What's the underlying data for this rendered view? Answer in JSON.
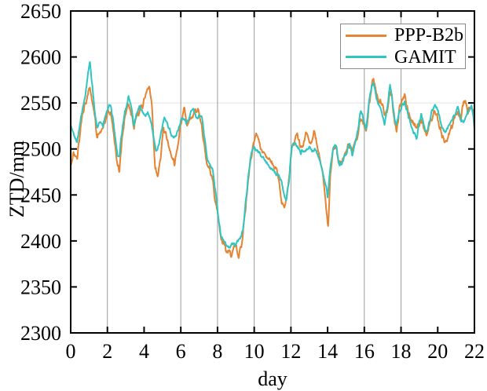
{
  "figure_title": "",
  "legend": {
    "items": [
      {
        "label": "PPP-B2b"
      },
      {
        "label": "GAMIT"
      }
    ]
  },
  "chart_data": {
    "type": "line",
    "title": "",
    "xlabel": "day",
    "ylabel": "ZTD/mm",
    "xlim": [
      0,
      22
    ],
    "ylim": [
      2300,
      2650
    ],
    "x_ticks": [
      0,
      2,
      4,
      6,
      8,
      10,
      12,
      14,
      16,
      18,
      20,
      22
    ],
    "y_ticks": [
      2300,
      2350,
      2400,
      2450,
      2500,
      2550,
      2600,
      2650
    ],
    "grid_vertical_days": [
      2,
      6,
      8,
      10,
      12,
      16,
      18
    ],
    "grid_horizontal_values": [
      2550
    ],
    "legend_position": "top-right",
    "colors": {
      "frame": "#000000",
      "grid_vertical": "#9a9a9a",
      "grid_horizontal": "#e2e2e2",
      "text": "#000000"
    },
    "series": [
      {
        "name": "PPP-B2b",
        "color": "#E58432",
        "anchors": [
          [
            0,
            2484
          ],
          [
            0.15,
            2494
          ],
          [
            0.35,
            2489
          ],
          [
            0.5,
            2516
          ],
          [
            0.65,
            2538
          ],
          [
            0.8,
            2549
          ],
          [
            0.95,
            2560
          ],
          [
            1.05,
            2567
          ],
          [
            1.15,
            2553
          ],
          [
            1.3,
            2536
          ],
          [
            1.45,
            2512
          ],
          [
            1.6,
            2521
          ],
          [
            1.75,
            2520
          ],
          [
            1.9,
            2532
          ],
          [
            2.05,
            2543
          ],
          [
            2.2,
            2539
          ],
          [
            2.35,
            2515
          ],
          [
            2.55,
            2482
          ],
          [
            2.65,
            2477
          ],
          [
            2.8,
            2512
          ],
          [
            3.0,
            2540
          ],
          [
            3.15,
            2552
          ],
          [
            3.3,
            2540
          ],
          [
            3.45,
            2523
          ],
          [
            3.6,
            2536
          ],
          [
            3.75,
            2541
          ],
          [
            3.9,
            2547
          ],
          [
            4.05,
            2556
          ],
          [
            4.2,
            2566
          ],
          [
            4.3,
            2569
          ],
          [
            4.45,
            2540
          ],
          [
            4.6,
            2478
          ],
          [
            4.75,
            2471
          ],
          [
            4.9,
            2488
          ],
          [
            5.05,
            2524
          ],
          [
            5.2,
            2515
          ],
          [
            5.35,
            2505
          ],
          [
            5.5,
            2495
          ],
          [
            5.65,
            2485
          ],
          [
            5.8,
            2498
          ],
          [
            5.95,
            2520
          ],
          [
            6.1,
            2538
          ],
          [
            6.2,
            2542
          ],
          [
            6.35,
            2521
          ],
          [
            6.5,
            2533
          ],
          [
            6.65,
            2538
          ],
          [
            6.8,
            2542
          ],
          [
            6.95,
            2540
          ],
          [
            7.1,
            2531
          ],
          [
            7.25,
            2508
          ],
          [
            7.4,
            2484
          ],
          [
            7.55,
            2479
          ],
          [
            7.7,
            2472
          ],
          [
            7.85,
            2448
          ],
          [
            8.0,
            2428
          ],
          [
            8.15,
            2408
          ],
          [
            8.3,
            2397
          ],
          [
            8.45,
            2392
          ],
          [
            8.6,
            2388
          ],
          [
            8.75,
            2384
          ],
          [
            8.9,
            2392
          ],
          [
            9.0,
            2396
          ],
          [
            9.15,
            2382
          ],
          [
            9.3,
            2396
          ],
          [
            9.45,
            2420
          ],
          [
            9.6,
            2450
          ],
          [
            9.75,
            2480
          ],
          [
            9.9,
            2499
          ],
          [
            10.05,
            2512
          ],
          [
            10.15,
            2517
          ],
          [
            10.3,
            2504
          ],
          [
            10.45,
            2497
          ],
          [
            10.6,
            2491
          ],
          [
            10.75,
            2490
          ],
          [
            10.9,
            2486
          ],
          [
            11.05,
            2481
          ],
          [
            11.2,
            2478
          ],
          [
            11.35,
            2468
          ],
          [
            11.5,
            2442
          ],
          [
            11.65,
            2436
          ],
          [
            11.8,
            2450
          ],
          [
            11.95,
            2480
          ],
          [
            12.05,
            2500
          ],
          [
            12.2,
            2509
          ],
          [
            12.35,
            2516
          ],
          [
            12.5,
            2503
          ],
          [
            12.65,
            2500
          ],
          [
            12.8,
            2519
          ],
          [
            12.95,
            2514
          ],
          [
            13.1,
            2505
          ],
          [
            13.25,
            2519
          ],
          [
            13.4,
            2505
          ],
          [
            13.55,
            2492
          ],
          [
            13.7,
            2478
          ],
          [
            13.85,
            2455
          ],
          [
            13.95,
            2430
          ],
          [
            14.02,
            2413
          ],
          [
            14.15,
            2470
          ],
          [
            14.3,
            2500
          ],
          [
            14.45,
            2505
          ],
          [
            14.6,
            2484
          ],
          [
            14.75,
            2486
          ],
          [
            14.9,
            2492
          ],
          [
            15.05,
            2501
          ],
          [
            15.2,
            2505
          ],
          [
            15.35,
            2496
          ],
          [
            15.5,
            2507
          ],
          [
            15.65,
            2515
          ],
          [
            15.8,
            2534
          ],
          [
            15.95,
            2528
          ],
          [
            16.1,
            2518
          ],
          [
            16.25,
            2545
          ],
          [
            16.4,
            2570
          ],
          [
            16.5,
            2576
          ],
          [
            16.65,
            2561
          ],
          [
            16.8,
            2552
          ],
          [
            16.95,
            2551
          ],
          [
            17.1,
            2536
          ],
          [
            17.25,
            2541
          ],
          [
            17.4,
            2563
          ],
          [
            17.5,
            2556
          ],
          [
            17.65,
            2528
          ],
          [
            17.75,
            2517
          ],
          [
            17.9,
            2542
          ],
          [
            18.05,
            2553
          ],
          [
            18.2,
            2561
          ],
          [
            18.35,
            2542
          ],
          [
            18.5,
            2531
          ],
          [
            18.65,
            2529
          ],
          [
            18.85,
            2521
          ],
          [
            19.0,
            2529
          ],
          [
            19.1,
            2533
          ],
          [
            19.25,
            2521
          ],
          [
            19.4,
            2514
          ],
          [
            19.55,
            2527
          ],
          [
            19.7,
            2536
          ],
          [
            19.85,
            2543
          ],
          [
            20.0,
            2533
          ],
          [
            20.2,
            2517
          ],
          [
            20.4,
            2506
          ],
          [
            20.55,
            2513
          ],
          [
            20.7,
            2520
          ],
          [
            20.85,
            2531
          ],
          [
            21.0,
            2538
          ],
          [
            21.1,
            2542
          ],
          [
            21.25,
            2531
          ],
          [
            21.4,
            2548
          ],
          [
            21.5,
            2552
          ],
          [
            21.65,
            2539
          ],
          [
            21.8,
            2546
          ],
          [
            21.95,
            2540
          ],
          [
            22,
            2533
          ]
        ]
      },
      {
        "name": "GAMIT",
        "color": "#2EC5C3",
        "anchors": [
          [
            0,
            2526
          ],
          [
            0.15,
            2516
          ],
          [
            0.35,
            2508
          ],
          [
            0.5,
            2528
          ],
          [
            0.65,
            2545
          ],
          [
            0.8,
            2560
          ],
          [
            0.95,
            2583
          ],
          [
            1.05,
            2593
          ],
          [
            1.15,
            2575
          ],
          [
            1.3,
            2543
          ],
          [
            1.45,
            2523
          ],
          [
            1.6,
            2529
          ],
          [
            1.75,
            2526
          ],
          [
            1.9,
            2538
          ],
          [
            2.05,
            2546
          ],
          [
            2.2,
            2547
          ],
          [
            2.35,
            2525
          ],
          [
            2.55,
            2495
          ],
          [
            2.65,
            2492
          ],
          [
            2.8,
            2521
          ],
          [
            3.0,
            2544
          ],
          [
            3.15,
            2557
          ],
          [
            3.3,
            2545
          ],
          [
            3.45,
            2526
          ],
          [
            3.6,
            2540
          ],
          [
            3.75,
            2546
          ],
          [
            3.9,
            2539
          ],
          [
            4.05,
            2536
          ],
          [
            4.2,
            2540
          ],
          [
            4.35,
            2532
          ],
          [
            4.5,
            2514
          ],
          [
            4.65,
            2497
          ],
          [
            4.8,
            2505
          ],
          [
            4.95,
            2520
          ],
          [
            5.1,
            2533
          ],
          [
            5.25,
            2527
          ],
          [
            5.45,
            2518
          ],
          [
            5.6,
            2513
          ],
          [
            5.75,
            2516
          ],
          [
            5.95,
            2528
          ],
          [
            6.1,
            2534
          ],
          [
            6.25,
            2530
          ],
          [
            6.4,
            2529
          ],
          [
            6.55,
            2542
          ],
          [
            6.7,
            2544
          ],
          [
            6.85,
            2533
          ],
          [
            7.0,
            2536
          ],
          [
            7.15,
            2534
          ],
          [
            7.3,
            2512
          ],
          [
            7.45,
            2487
          ],
          [
            7.6,
            2481
          ],
          [
            7.75,
            2475
          ],
          [
            7.9,
            2452
          ],
          [
            8.05,
            2425
          ],
          [
            8.2,
            2405
          ],
          [
            8.35,
            2399
          ],
          [
            8.5,
            2396
          ],
          [
            8.65,
            2391
          ],
          [
            8.8,
            2397
          ],
          [
            8.95,
            2394
          ],
          [
            9.1,
            2399
          ],
          [
            9.25,
            2402
          ],
          [
            9.4,
            2415
          ],
          [
            9.55,
            2445
          ],
          [
            9.7,
            2475
          ],
          [
            9.85,
            2495
          ],
          [
            10.0,
            2501
          ],
          [
            10.15,
            2499
          ],
          [
            10.3,
            2496
          ],
          [
            10.45,
            2492
          ],
          [
            10.6,
            2487
          ],
          [
            10.75,
            2482
          ],
          [
            10.9,
            2479
          ],
          [
            11.05,
            2476
          ],
          [
            11.2,
            2472
          ],
          [
            11.35,
            2471
          ],
          [
            11.5,
            2463
          ],
          [
            11.65,
            2449
          ],
          [
            11.75,
            2446
          ],
          [
            11.9,
            2465
          ],
          [
            12.0,
            2495
          ],
          [
            12.1,
            2504
          ],
          [
            12.25,
            2506
          ],
          [
            12.4,
            2500
          ],
          [
            12.55,
            2496
          ],
          [
            12.7,
            2497
          ],
          [
            12.85,
            2500
          ],
          [
            13.0,
            2502
          ],
          [
            13.15,
            2496
          ],
          [
            13.3,
            2499
          ],
          [
            13.45,
            2495
          ],
          [
            13.6,
            2488
          ],
          [
            13.75,
            2473
          ],
          [
            13.9,
            2460
          ],
          [
            14.0,
            2449
          ],
          [
            14.15,
            2480
          ],
          [
            14.35,
            2504
          ],
          [
            14.5,
            2500
          ],
          [
            14.65,
            2482
          ],
          [
            14.75,
            2483
          ],
          [
            14.9,
            2491
          ],
          [
            15.05,
            2497
          ],
          [
            15.2,
            2507
          ],
          [
            15.35,
            2494
          ],
          [
            15.5,
            2505
          ],
          [
            15.65,
            2520
          ],
          [
            15.8,
            2541
          ],
          [
            15.95,
            2533
          ],
          [
            16.1,
            2521
          ],
          [
            16.25,
            2549
          ],
          [
            16.4,
            2569
          ],
          [
            16.5,
            2571
          ],
          [
            16.65,
            2556
          ],
          [
            16.8,
            2546
          ],
          [
            16.95,
            2540
          ],
          [
            17.1,
            2528
          ],
          [
            17.25,
            2544
          ],
          [
            17.4,
            2569
          ],
          [
            17.5,
            2560
          ],
          [
            17.65,
            2532
          ],
          [
            17.75,
            2527
          ],
          [
            17.9,
            2539
          ],
          [
            18.05,
            2546
          ],
          [
            18.2,
            2551
          ],
          [
            18.35,
            2541
          ],
          [
            18.5,
            2529
          ],
          [
            18.65,
            2521
          ],
          [
            18.85,
            2512
          ],
          [
            19.0,
            2530
          ],
          [
            19.1,
            2537
          ],
          [
            19.25,
            2524
          ],
          [
            19.4,
            2519
          ],
          [
            19.55,
            2531
          ],
          [
            19.7,
            2541
          ],
          [
            19.85,
            2548
          ],
          [
            20.0,
            2541
          ],
          [
            20.2,
            2526
          ],
          [
            20.4,
            2518
          ],
          [
            20.55,
            2521
          ],
          [
            20.7,
            2528
          ],
          [
            20.85,
            2536
          ],
          [
            21.0,
            2541
          ],
          [
            21.1,
            2545
          ],
          [
            21.25,
            2533
          ],
          [
            21.4,
            2529
          ],
          [
            21.55,
            2536
          ],
          [
            21.7,
            2541
          ],
          [
            21.85,
            2545
          ],
          [
            21.95,
            2532
          ],
          [
            22,
            2521
          ]
        ]
      }
    ],
    "noise": {
      "step": 0.015,
      "amplitudes": {
        "PPP-B2b": 4.5,
        "GAMIT": 3.0
      },
      "seeds": {
        "PPP-B2b": 7,
        "GAMIT": 13
      }
    }
  }
}
